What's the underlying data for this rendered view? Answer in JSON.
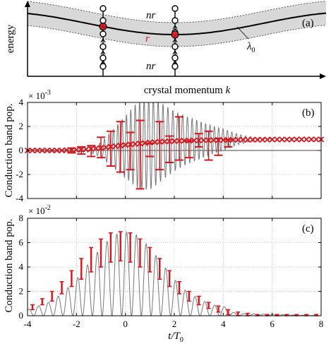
{
  "panel_a": {
    "tag": "(a)",
    "ylabel": "energy",
    "xlabel": "crystal momentum",
    "xlabel_var": "k",
    "label_upper": "nr",
    "label_mid": "r",
    "label_lower": "nr",
    "lambda_label": "λ",
    "lambda_sub": "0"
  },
  "panel_b": {
    "tag": "(b)",
    "ylabel": "Conduction band pop.",
    "exponent_base": "× 10",
    "exponent_power": "-3"
  },
  "panel_c": {
    "tag": "(c)",
    "ylabel": "Conduction band pop.",
    "exponent_base": "× 10",
    "exponent_power": "-2"
  },
  "colors": {
    "red": "#d9141c",
    "gray": "#777777",
    "band": "#d8d8d8"
  },
  "chart_data": [
    {
      "type": "line",
      "panel": "b",
      "xlim": [
        -4,
        8
      ],
      "ylim": [
        -4,
        4
      ],
      "yticks": [
        -4,
        -2,
        0,
        2,
        4
      ],
      "xticks": [
        -4,
        -2,
        0,
        2,
        4,
        6,
        8
      ],
      "grid": true,
      "series": [
        {
          "style": "gray-oscillation",
          "x": [
            -4,
            -1.5,
            -1,
            -0.5,
            0,
            0.5,
            1,
            1.5,
            2,
            2.5,
            3,
            3.5,
            4,
            4.5,
            5,
            5.5,
            6
          ],
          "envelope": [
            0.02,
            0.15,
            0.6,
            1.6,
            2.6,
            3.6,
            3.9,
            3.2,
            2.5,
            2.0,
            1.6,
            1.2,
            0.9,
            0.5,
            0.25,
            0.1,
            0.03
          ],
          "baseline": [
            0,
            0,
            0.05,
            0.15,
            0.3,
            0.45,
            0.6,
            0.7,
            0.78,
            0.83,
            0.86,
            0.88,
            0.9,
            0.92,
            0.93,
            0.94,
            0.95
          ]
        },
        {
          "style": "red-crosses",
          "x": [
            -4,
            -3.8,
            -3.6,
            -3.4,
            -3.2,
            -3,
            -2.8,
            -2.6,
            -2.4,
            -2.2,
            -2,
            -1.8,
            -1.6,
            -1.4,
            -1.2,
            -1,
            -0.8,
            -0.6,
            -0.4,
            -0.2,
            0,
            0.2,
            0.4,
            0.6,
            0.8,
            1,
            1.2,
            1.4,
            1.6,
            1.8,
            2,
            2.2,
            2.4,
            2.6,
            2.8,
            3,
            3.2,
            3.4,
            3.6,
            3.8,
            4,
            4.2,
            4.4,
            4.6,
            4.8,
            5,
            5.2,
            5.4,
            5.6,
            5.8,
            6,
            6.2,
            6.4,
            6.6,
            6.8,
            7,
            7.2,
            7.4,
            7.6,
            7.8,
            8
          ],
          "y": [
            0,
            0,
            0,
            0,
            0,
            0,
            0,
            0,
            0.02,
            0.03,
            0.05,
            0.07,
            0.1,
            0.13,
            0.17,
            0.21,
            0.26,
            0.31,
            0.36,
            0.41,
            0.46,
            0.5,
            0.54,
            0.58,
            0.62,
            0.66,
            0.69,
            0.72,
            0.74,
            0.76,
            0.78,
            0.8,
            0.81,
            0.82,
            0.83,
            0.84,
            0.85,
            0.86,
            0.86,
            0.87,
            0.87,
            0.88,
            0.88,
            0.89,
            0.89,
            0.89,
            0.9,
            0.9,
            0.9,
            0.9,
            0.91,
            0.91,
            0.91,
            0.91,
            0.91,
            0.92,
            0.92,
            0.92,
            0.92,
            0.92,
            0.92
          ]
        },
        {
          "style": "red-errorbars",
          "x": [
            -2.2,
            -1.8,
            -1.4,
            -1.0,
            -0.6,
            -0.2,
            0.2,
            0.6,
            1.0,
            1.4,
            1.8,
            2.2,
            2.6,
            3.0,
            3.4,
            3.8,
            4.2
          ],
          "ylow": [
            -0.2,
            -0.3,
            0.4,
            -0.6,
            -1.3,
            -1.8,
            1.5,
            -3.2,
            0.6,
            -1.6,
            1.2,
            -0.8,
            0.8,
            0.3,
            -0.8,
            1.0,
            0.3
          ],
          "yhigh": [
            0.2,
            0.3,
            -0.5,
            1.1,
            1.6,
            2.4,
            -1.6,
            2.5,
            -0.5,
            2.4,
            -1.0,
            2.8,
            -0.6,
            1.4,
            1.6,
            -0.4,
            0.9
          ]
        }
      ]
    },
    {
      "type": "line",
      "panel": "c",
      "xlim": [
        -4,
        8
      ],
      "ylim": [
        0,
        8
      ],
      "yticks": [
        0,
        2,
        4,
        6,
        8
      ],
      "xticks": [
        -4,
        -2,
        0,
        2,
        4,
        6,
        8
      ],
      "xlabel": "t/T",
      "xlabel_sub": "0",
      "grid": true,
      "series": [
        {
          "style": "gray-oscillation",
          "x": [
            -4,
            -3,
            -2.5,
            -2,
            -1.5,
            -1,
            -0.5,
            0,
            0.5,
            1,
            1.5,
            2,
            2.5,
            3,
            3.5,
            4,
            4.5,
            8
          ],
          "envelope": [
            0.5,
            1.2,
            2.0,
            3.0,
            4.3,
            5.6,
            6.6,
            6.9,
            6.6,
            5.6,
            4.3,
            3.0,
            2.0,
            1.4,
            0.9,
            0.8,
            0.2,
            0.0
          ]
        },
        {
          "style": "red-bars",
          "x": [
            -3.8,
            -3.4,
            -3.0,
            -2.6,
            -2.2,
            -1.8,
            -1.4,
            -1.0,
            -0.6,
            -0.2,
            0.2,
            0.6,
            1.0,
            1.4,
            1.8,
            2.2,
            2.6,
            3.0,
            3.4,
            3.8,
            4.2,
            4.6,
            5.0,
            5.4,
            5.8,
            6.2,
            6.6,
            7.0,
            7.4,
            7.8
          ],
          "yhigh": [
            0.9,
            1.4,
            2.0,
            2.8,
            3.7,
            4.7,
            5.6,
            6.3,
            6.8,
            6.9,
            6.8,
            6.3,
            5.6,
            4.7,
            3.7,
            2.8,
            2.0,
            1.6,
            1.1,
            0.8,
            0.5,
            0.3,
            0.2,
            0.1,
            0.1,
            0.1,
            0.1,
            0.1,
            0.1,
            0.1
          ],
          "ylow": [
            0.5,
            0.9,
            1.2,
            1.8,
            2.4,
            3.0,
            3.6,
            4.0,
            4.4,
            4.5,
            4.4,
            4.0,
            3.6,
            3.0,
            2.4,
            1.8,
            1.2,
            0.9,
            0.6,
            0.3,
            0.1,
            0.0,
            0.0,
            0.0,
            0.0,
            0.0,
            0.0,
            0.0,
            0.0,
            0.0
          ]
        }
      ]
    }
  ]
}
